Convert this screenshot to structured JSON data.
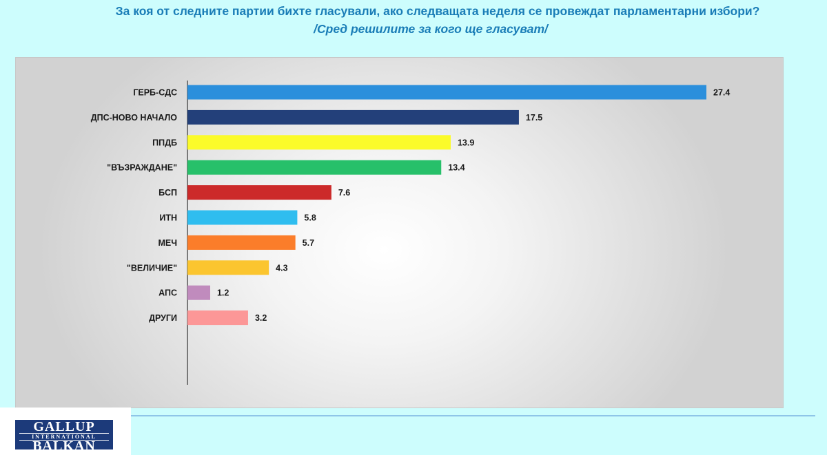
{
  "header": {
    "title": "За коя от следните партии бихте  гласували,  ако следващата неделя се провеждат парламентарни избори?",
    "subtitle": "/Сред решилите за кого ще гласуват/"
  },
  "logo": {
    "line1": "GALLUP",
    "line2": "INTERNATIONAL",
    "line3": "BALKAN"
  },
  "chart_data": {
    "type": "bar",
    "orientation": "horizontal",
    "categories": [
      "ГЕРБ-СДС",
      "ДПС-НОВО НАЧАЛО",
      "ППДБ",
      "\"ВЪЗРАЖДАНЕ\"",
      "БСП",
      "ИТН",
      "МЕЧ",
      "\"ВЕЛИЧИЕ\"",
      "АПС",
      "ДРУГИ"
    ],
    "values": [
      27.4,
      17.5,
      13.9,
      13.4,
      7.6,
      5.8,
      5.7,
      4.3,
      1.2,
      3.2
    ],
    "value_labels": [
      "27.4",
      "17.5",
      "13.9",
      "13.4",
      "7.6",
      "5.8",
      "5.7",
      "4.3",
      "1.2",
      "3.2"
    ],
    "colors": [
      "#2b8fdc",
      "#23407a",
      "#fbfb2a",
      "#27c06a",
      "#cc2a2a",
      "#2fbdef",
      "#fb7d2a",
      "#fbc52f",
      "#c08bbd",
      "#fc9797"
    ],
    "xlim": [
      0,
      27.4
    ],
    "title": "",
    "xlabel": "",
    "ylabel": "",
    "grid": false,
    "legend": "none"
  }
}
